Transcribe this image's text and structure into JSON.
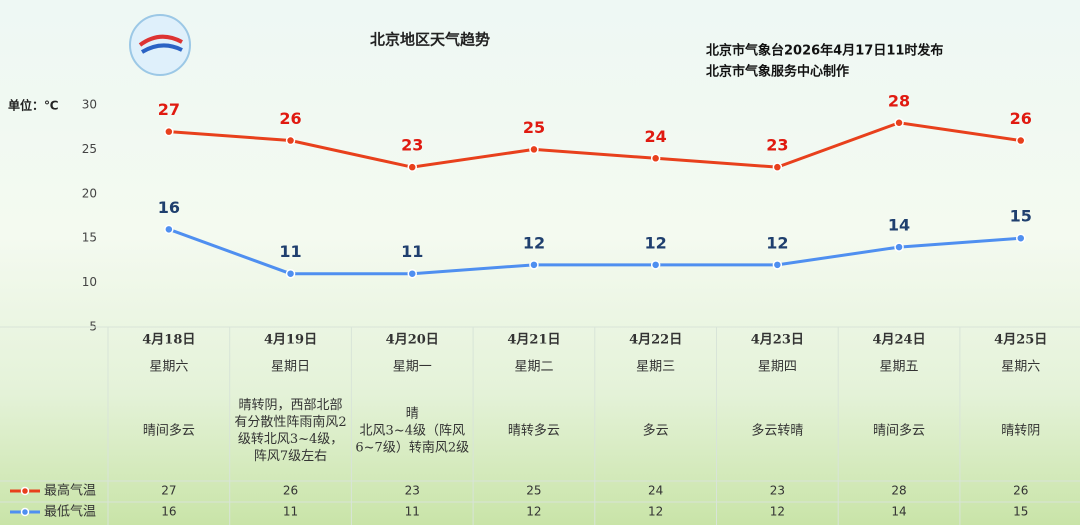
{
  "chart_data": {
    "type": "line",
    "title": "北京地区天气趋势",
    "source": [
      "北京市气象台2026年4月17日11时发布",
      "北京市气象服务中心制作"
    ],
    "y_label": "单位：℃",
    "categories": [
      "4月18日",
      "4月19日",
      "4月20日",
      "4月21日",
      "4月22日",
      "4月23日",
      "4月24日",
      "4月25日"
    ],
    "weekdays": [
      "星期六",
      "星期日",
      "星期一",
      "星期二",
      "星期三",
      "星期四",
      "星期五",
      "星期六"
    ],
    "weather": [
      "晴间多云",
      "晴转阴，西部北部有分散性阵雨南风2级转北风3~4级，阵风7级左右",
      "晴\n北风3~4级（阵风6~7级）转南风2级",
      "晴转多云",
      "多云",
      "多云转晴",
      "晴间多云",
      "晴转阴"
    ],
    "series": [
      {
        "name": "最高气温",
        "color": "#e8401c",
        "label_color": "#e01a10",
        "values": [
          27,
          26,
          23,
          25,
          24,
          23,
          28,
          26
        ]
      },
      {
        "name": "最低气温",
        "color": "#4f8ff0",
        "label_color": "#1f3f6e",
        "values": [
          16,
          11,
          11,
          12,
          12,
          12,
          14,
          15
        ]
      }
    ],
    "ylim": [
      5,
      30
    ],
    "yticks": [
      5,
      10,
      15,
      20,
      25,
      30
    ],
    "grid": false
  }
}
